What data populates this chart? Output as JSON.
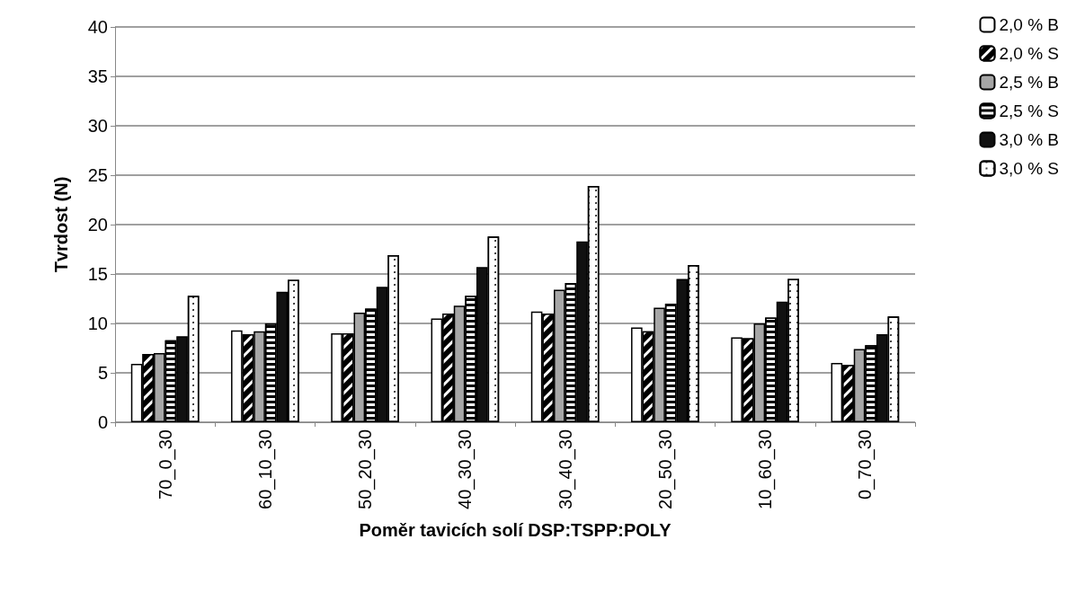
{
  "chart_data": {
    "type": "bar",
    "xlabel": "Poměr tavicích solí DSP:TSPP:POLY",
    "ylabel": "Tvrdost (N)",
    "categories": [
      "70_0_30",
      "60_10_30",
      "50_20_30",
      "40_30_30",
      "30_40_30",
      "20_50_30",
      "10_60_30",
      "0_70_30"
    ],
    "series": [
      {
        "name": "2,0 % B",
        "color": "#ffffff",
        "values": [
          5.9,
          9.3,
          9.0,
          10.5,
          11.2,
          9.6,
          8.6,
          6.0
        ]
      },
      {
        "name": "2,0 % S",
        "color": "#000000",
        "values": [
          6.9,
          8.9,
          9.0,
          11.0,
          11.0,
          9.2,
          8.5,
          5.8
        ]
      },
      {
        "name": "2,5 % B",
        "color": "#a6a6a6",
        "values": [
          7.0,
          9.2,
          11.1,
          11.8,
          13.4,
          11.6,
          10.0,
          7.4
        ]
      },
      {
        "name": "2,5 % S",
        "color": "#ffffff",
        "values": [
          8.3,
          10.0,
          11.5,
          12.8,
          14.1,
          12.0,
          10.6,
          7.8
        ]
      },
      {
        "name": "3,0 % B",
        "color": "#111111",
        "values": [
          8.7,
          13.2,
          13.7,
          15.7,
          18.3,
          14.5,
          12.2,
          8.9
        ]
      },
      {
        "name": "3,0 % S",
        "color": "#ffffff",
        "values": [
          12.8,
          14.4,
          16.9,
          18.8,
          23.9,
          15.9,
          14.5,
          10.7
        ]
      }
    ],
    "ylim": [
      0,
      40
    ],
    "yticks": [
      0,
      5,
      10,
      15,
      20,
      25,
      30,
      35,
      40
    ],
    "grid": "y",
    "legend": "right"
  }
}
